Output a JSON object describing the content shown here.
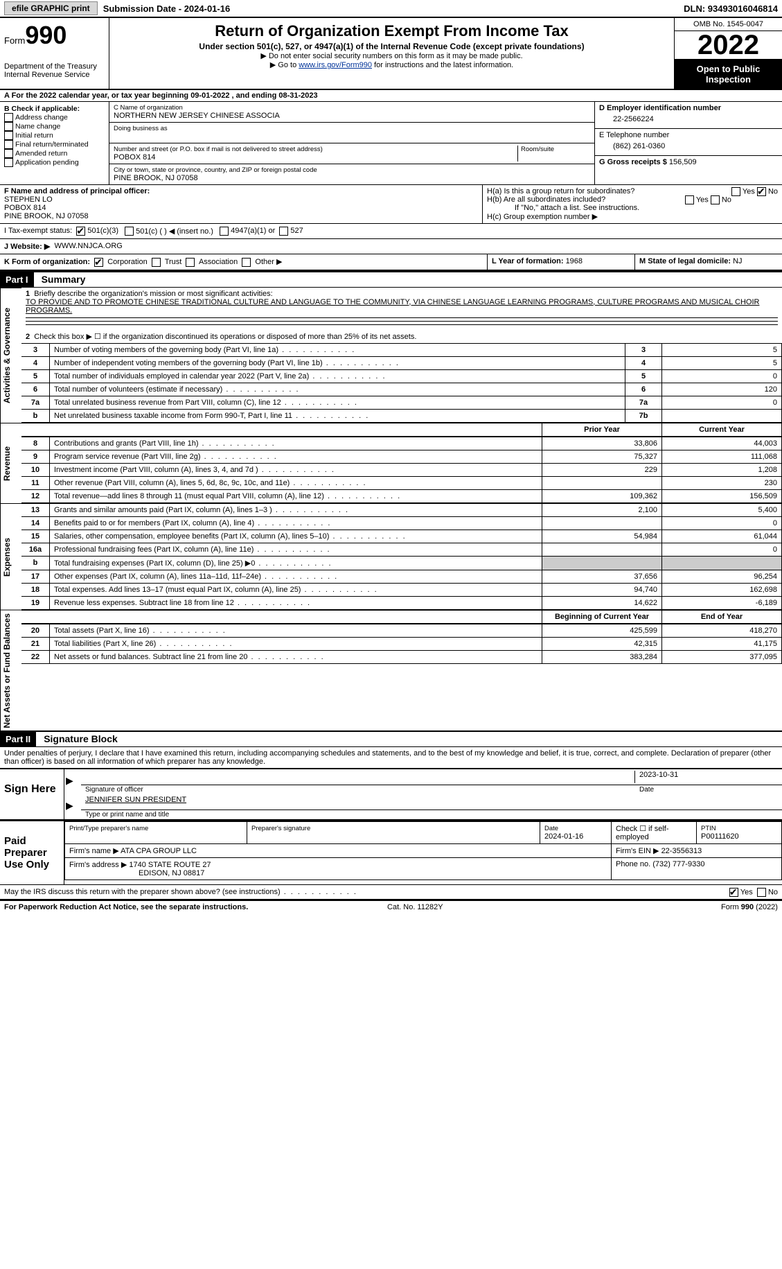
{
  "topbar": {
    "efile_label": "efile GRAPHIC print",
    "submission_label": "Submission Date - 2024-01-16",
    "dln_label": "DLN: 93493016046814"
  },
  "header": {
    "form_label": "Form",
    "form_number": "990",
    "dept": "Department of the Treasury",
    "irs": "Internal Revenue Service",
    "title": "Return of Organization Exempt From Income Tax",
    "subtitle": "Under section 501(c), 527, or 4947(a)(1) of the Internal Revenue Code (except private foundations)",
    "note1": "▶ Do not enter social security numbers on this form as it may be made public.",
    "note2_pre": "▶ Go to ",
    "note2_link": "www.irs.gov/Form990",
    "note2_post": " for instructions and the latest information.",
    "omb": "OMB No. 1545-0047",
    "year": "2022",
    "open": "Open to Public Inspection"
  },
  "section_a": "A For the 2022 calendar year, or tax year beginning 09-01-2022   , and ending 08-31-2023",
  "section_b": {
    "label": "B Check if applicable:",
    "opts": [
      "Address change",
      "Name change",
      "Initial return",
      "Final return/terminated",
      "Amended return",
      "Application pending"
    ]
  },
  "section_c": {
    "name_label": "C Name of organization",
    "name": "NORTHERN NEW JERSEY CHINESE ASSOCIA",
    "dba_label": "Doing business as",
    "street_label": "Number and street (or P.O. box if mail is not delivered to street address)",
    "street": "POBOX 814",
    "room_label": "Room/suite",
    "city_label": "City or town, state or province, country, and ZIP or foreign postal code",
    "city": "PINE BROOK, NJ  07058"
  },
  "section_d": {
    "label": "D Employer identification number",
    "value": "22-2566224"
  },
  "section_e": {
    "label": "E Telephone number",
    "value": "(862) 261-0360"
  },
  "section_g": {
    "label": "G Gross receipts $ ",
    "value": "156,509"
  },
  "section_f": {
    "label": "F Name and address of principal officer:",
    "name": "STEPHEN LO",
    "addr1": "POBOX 814",
    "addr2": "PINE BROOK, NJ  07058"
  },
  "section_h": {
    "ha": "H(a)  Is this a group return for subordinates?",
    "hb": "H(b)  Are all subordinates included?",
    "hb_note": "If \"No,\" attach a list. See instructions.",
    "hc": "H(c)  Group exemption number ▶",
    "yes": "Yes",
    "no": "No"
  },
  "section_i": {
    "label": "I   Tax-exempt status:",
    "opts": [
      "501(c)(3)",
      "501(c) (  ) ◀ (insert no.)",
      "4947(a)(1) or",
      "527"
    ]
  },
  "section_j": {
    "label": "J   Website: ▶",
    "value": "WWW.NNJCA.ORG"
  },
  "section_k": {
    "label": "K Form of organization:",
    "opts": [
      "Corporation",
      "Trust",
      "Association",
      "Other ▶"
    ]
  },
  "section_l": {
    "label": "L Year of formation: ",
    "value": "1968"
  },
  "section_m": {
    "label": "M State of legal domicile: ",
    "value": "NJ"
  },
  "part1": {
    "header": "Part I",
    "title": "Summary",
    "line1_label": "Briefly describe the organization's mission or most significant activities:",
    "line1_text": "TO PROVIDE AND TO PROMOTE CHINESE TRADITIONAL CULTURE AND LANGUAGE TO THE COMMUNITY, VIA CHINESE LANGUAGE LEARNING PROGRAMS, CULTURE PROGRAMS AND MUSICAL CHOIR PROGRAMS.",
    "line2": "Check this box ▶ ☐ if the organization discontinued its operations or disposed of more than 25% of its net assets.",
    "vlabels": {
      "ag": "Activities & Governance",
      "rev": "Revenue",
      "exp": "Expenses",
      "nafb": "Net Assets or Fund Balances"
    },
    "rows_ag": [
      {
        "n": "3",
        "d": "Number of voting members of the governing body (Part VI, line 1a)",
        "box": "3",
        "v": "5"
      },
      {
        "n": "4",
        "d": "Number of independent voting members of the governing body (Part VI, line 1b)",
        "box": "4",
        "v": "5"
      },
      {
        "n": "5",
        "d": "Total number of individuals employed in calendar year 2022 (Part V, line 2a)",
        "box": "5",
        "v": "0"
      },
      {
        "n": "6",
        "d": "Total number of volunteers (estimate if necessary)",
        "box": "6",
        "v": "120"
      },
      {
        "n": "7a",
        "d": "Total unrelated business revenue from Part VIII, column (C), line 12",
        "box": "7a",
        "v": "0"
      },
      {
        "n": "b",
        "d": "Net unrelated business taxable income from Form 990-T, Part I, line 11",
        "box": "7b",
        "v": ""
      }
    ],
    "col_headers": {
      "prior": "Prior Year",
      "current": "Current Year"
    },
    "rows_rev": [
      {
        "n": "8",
        "d": "Contributions and grants (Part VIII, line 1h)",
        "p": "33,806",
        "c": "44,003"
      },
      {
        "n": "9",
        "d": "Program service revenue (Part VIII, line 2g)",
        "p": "75,327",
        "c": "111,068"
      },
      {
        "n": "10",
        "d": "Investment income (Part VIII, column (A), lines 3, 4, and 7d )",
        "p": "229",
        "c": "1,208"
      },
      {
        "n": "11",
        "d": "Other revenue (Part VIII, column (A), lines 5, 6d, 8c, 9c, 10c, and 11e)",
        "p": "",
        "c": "230"
      },
      {
        "n": "12",
        "d": "Total revenue—add lines 8 through 11 (must equal Part VIII, column (A), line 12)",
        "p": "109,362",
        "c": "156,509"
      }
    ],
    "rows_exp": [
      {
        "n": "13",
        "d": "Grants and similar amounts paid (Part IX, column (A), lines 1–3 )",
        "p": "2,100",
        "c": "5,400"
      },
      {
        "n": "14",
        "d": "Benefits paid to or for members (Part IX, column (A), line 4)",
        "p": "",
        "c": "0"
      },
      {
        "n": "15",
        "d": "Salaries, other compensation, employee benefits (Part IX, column (A), lines 5–10)",
        "p": "54,984",
        "c": "61,044"
      },
      {
        "n": "16a",
        "d": "Professional fundraising fees (Part IX, column (A), line 11e)",
        "p": "",
        "c": "0"
      },
      {
        "n": "b",
        "d": "Total fundraising expenses (Part IX, column (D), line 25) ▶0",
        "p": "SHADE",
        "c": "SHADE"
      },
      {
        "n": "17",
        "d": "Other expenses (Part IX, column (A), lines 11a–11d, 11f–24e)",
        "p": "37,656",
        "c": "96,254"
      },
      {
        "n": "18",
        "d": "Total expenses. Add lines 13–17 (must equal Part IX, column (A), line 25)",
        "p": "94,740",
        "c": "162,698"
      },
      {
        "n": "19",
        "d": "Revenue less expenses. Subtract line 18 from line 12",
        "p": "14,622",
        "c": "-6,189"
      }
    ],
    "col_headers2": {
      "beg": "Beginning of Current Year",
      "end": "End of Year"
    },
    "rows_na": [
      {
        "n": "20",
        "d": "Total assets (Part X, line 16)",
        "p": "425,599",
        "c": "418,270"
      },
      {
        "n": "21",
        "d": "Total liabilities (Part X, line 26)",
        "p": "42,315",
        "c": "41,175"
      },
      {
        "n": "22",
        "d": "Net assets or fund balances. Subtract line 21 from line 20",
        "p": "383,284",
        "c": "377,095"
      }
    ]
  },
  "part2": {
    "header": "Part II",
    "title": "Signature Block",
    "declaration": "Under penalties of perjury, I declare that I have examined this return, including accompanying schedules and statements, and to the best of my knowledge and belief, it is true, correct, and complete. Declaration of preparer (other than officer) is based on all information of which preparer has any knowledge.",
    "sign_here": "Sign Here",
    "sig_officer": "Signature of officer",
    "sig_date": "2023-10-31",
    "date_label": "Date",
    "officer_name": "JENNIFER SUN PRESIDENT",
    "type_name": "Type or print name and title",
    "paid_prep": "Paid Preparer Use Only",
    "prep_name_label": "Print/Type preparer's name",
    "prep_sig_label": "Preparer's signature",
    "prep_date_label": "Date",
    "prep_date": "2024-01-16",
    "check_if": "Check ☐ if self-employed",
    "ptin_label": "PTIN",
    "ptin": "P00111620",
    "firm_name_label": "Firm's name    ▶ ",
    "firm_name": "ATA CPA GROUP LLC",
    "firm_ein_label": "Firm's EIN ▶ ",
    "firm_ein": "22-3556313",
    "firm_addr_label": "Firm's address ▶ ",
    "firm_addr1": "1740 STATE ROUTE 27",
    "firm_addr2": "EDISON, NJ  08817",
    "phone_label": "Phone no. ",
    "phone": "(732) 777-9330",
    "may_irs": "May the IRS discuss this return with the preparer shown above? (see instructions)",
    "yes": "Yes",
    "no": "No"
  },
  "footer": {
    "left": "For Paperwork Reduction Act Notice, see the separate instructions.",
    "mid": "Cat. No. 11282Y",
    "right": "Form 990 (2022)"
  }
}
